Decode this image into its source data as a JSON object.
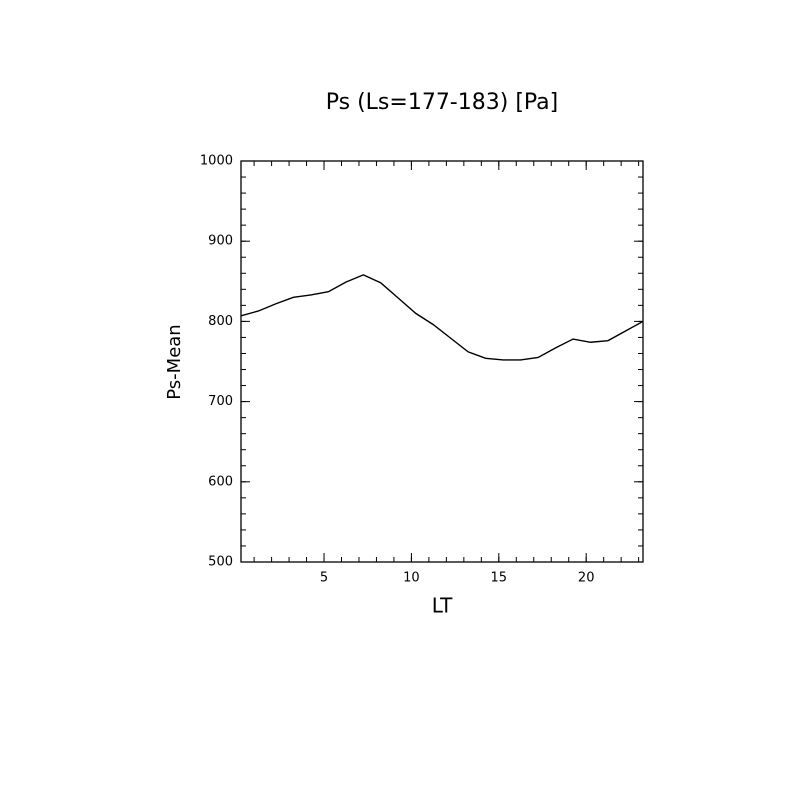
{
  "chart_data": {
    "type": "line",
    "title": "Ps (Ls=177-183) [Pa]",
    "x_label": "LT",
    "y_label": "Ps-Mean",
    "x": [
      0.25,
      1.25,
      2.25,
      3.25,
      4.25,
      5.25,
      6.25,
      7.25,
      8.25,
      9.25,
      10.25,
      11.25,
      12.25,
      13.25,
      14.25,
      15.25,
      16.25,
      17.25,
      18.25,
      19.25,
      20.25,
      21.25,
      22.25,
      23.25
    ],
    "series": [
      {
        "name": "Ps-Mean",
        "color": "#000000",
        "values": [
          807,
          813,
          822,
          830,
          833,
          837,
          849,
          858,
          848,
          829,
          810,
          796,
          779,
          762,
          754,
          752,
          752,
          755,
          767,
          778,
          774,
          776,
          788,
          800
        ]
      }
    ],
    "xlim": [
      0.25,
      23.25
    ],
    "xticks": [
      5,
      10,
      15,
      20
    ],
    "ylim": [
      500,
      1000
    ],
    "yticks": [
      500,
      600,
      700,
      800,
      900,
      1000
    ]
  }
}
